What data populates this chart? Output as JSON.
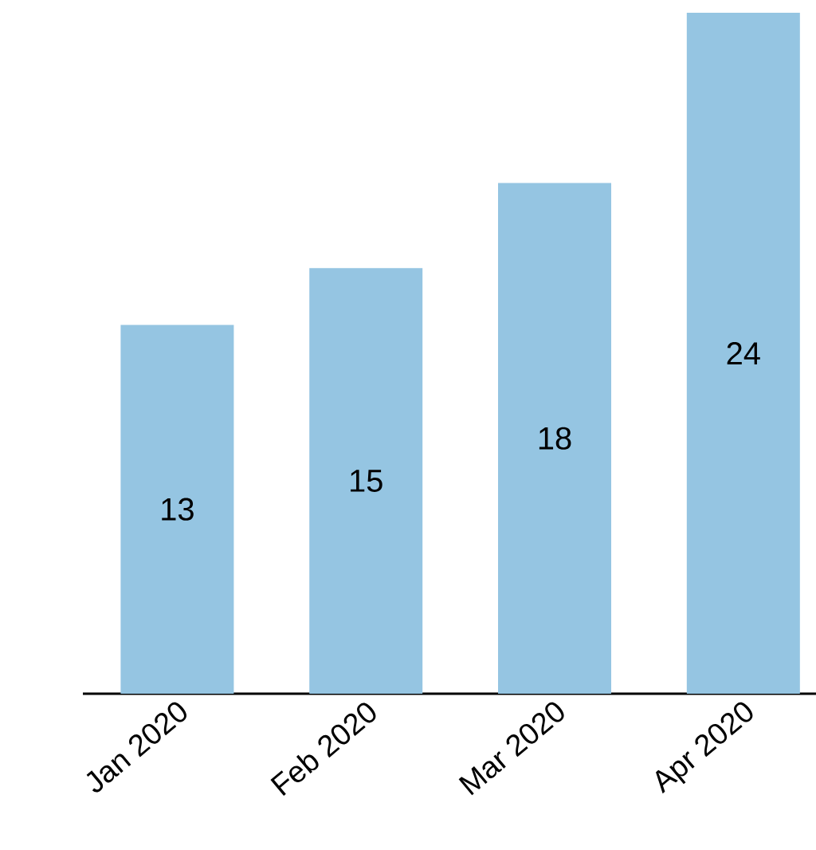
{
  "chart_data": {
    "type": "bar",
    "categories": [
      "Jan 2020",
      "Feb 2020",
      "Mar 2020",
      "Apr 2020"
    ],
    "values": [
      13,
      15,
      18,
      24
    ],
    "color": "#95c5e2",
    "data_labels": true
  }
}
